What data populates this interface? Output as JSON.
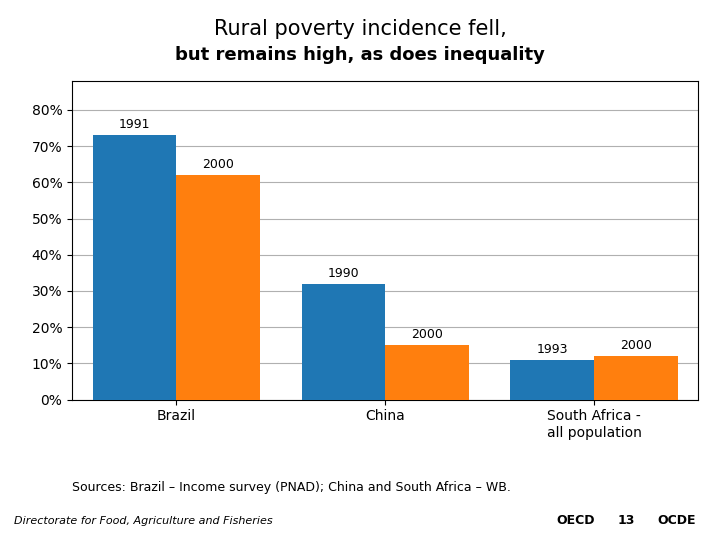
{
  "chart_data": {
    "type": "bar",
    "title": "Rural poverty incidence fell,",
    "subtitle": "but remains high, as does inequality",
    "categories": [
      "Brazil",
      "China",
      "South Africa -\nall population"
    ],
    "series": [
      {
        "values": [
          0.73,
          0.32,
          0.11
        ],
        "labels": [
          "1991",
          "1990",
          "1993"
        ]
      },
      {
        "values": [
          0.62,
          0.15,
          0.12
        ],
        "labels": [
          "2000",
          "2000",
          "2000"
        ]
      }
    ],
    "ylim": [
      0,
      0.88
    ],
    "yticks": [
      {
        "value": 0.0,
        "label": "0%"
      },
      {
        "value": 0.1,
        "label": "10%"
      },
      {
        "value": 0.2,
        "label": "20%"
      },
      {
        "value": 0.3,
        "label": "30%"
      },
      {
        "value": 0.4,
        "label": "40%"
      },
      {
        "value": 0.5,
        "label": "50%"
      },
      {
        "value": 0.6,
        "label": "60%"
      },
      {
        "value": 0.7,
        "label": "70%"
      },
      {
        "value": 0.8,
        "label": "80%"
      }
    ],
    "grid": true,
    "annotations": [
      "Sources: Brazil – Income survey (PNAD); China and South Africa – WB.",
      "Directorate for Food, Agriculture and Fisheries",
      "OECD",
      "13",
      "OCDE"
    ]
  }
}
